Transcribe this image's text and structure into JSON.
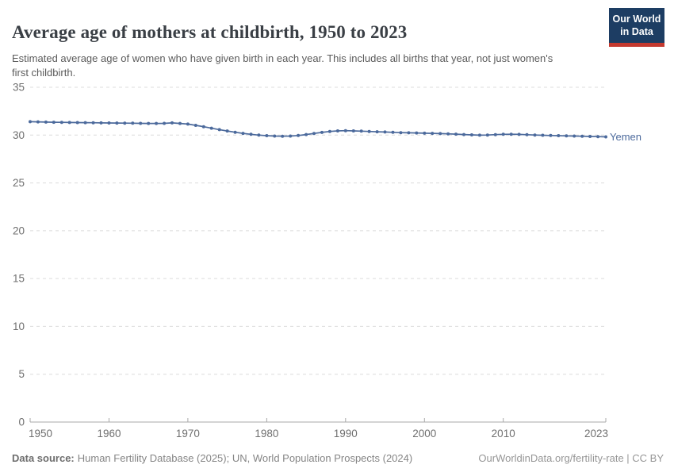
{
  "header": {
    "title": "Average age of mothers at childbirth, 1950 to 2023",
    "subtitle": "Estimated average age of women who have given birth in each year. This includes all births that year, not just women's first childbirth."
  },
  "logo": {
    "text_line1": "Our World",
    "text_line2": "in Data",
    "background_color": "#1d3d63",
    "accent_color": "#c4392f",
    "text_color": "#ffffff"
  },
  "colors": {
    "axis": "#a8a8a8",
    "gridline": "#dcdcdc",
    "tick_label": "#6f6f6f",
    "series_blue": "#4C6A9C"
  },
  "chart_data": {
    "type": "line",
    "title": "Average age of mothers at childbirth, 1950 to 2023",
    "xlabel": "",
    "ylabel": "",
    "xlim": [
      1950,
      2023
    ],
    "ylim": [
      0,
      35
    ],
    "x_ticks": [
      1950,
      1960,
      1970,
      1980,
      1990,
      2000,
      2010,
      2023
    ],
    "y_ticks": [
      0,
      5,
      10,
      15,
      20,
      25,
      30,
      35
    ],
    "grid": "horizontal-dashed",
    "legend_position": "line-end-label",
    "series": [
      {
        "name": "Yemen",
        "color": "#4C6A9C",
        "years": [
          1950,
          1951,
          1952,
          1953,
          1954,
          1955,
          1956,
          1957,
          1958,
          1959,
          1960,
          1961,
          1962,
          1963,
          1964,
          1965,
          1966,
          1967,
          1968,
          1969,
          1970,
          1971,
          1972,
          1973,
          1974,
          1975,
          1976,
          1977,
          1978,
          1979,
          1980,
          1981,
          1982,
          1983,
          1984,
          1985,
          1986,
          1987,
          1988,
          1989,
          1990,
          1991,
          1992,
          1993,
          1994,
          1995,
          1996,
          1997,
          1998,
          1999,
          2000,
          2001,
          2002,
          2003,
          2004,
          2005,
          2006,
          2007,
          2008,
          2009,
          2010,
          2011,
          2012,
          2013,
          2014,
          2015,
          2016,
          2017,
          2018,
          2019,
          2020,
          2021,
          2022,
          2023
        ],
        "values": [
          31.4,
          31.38,
          31.36,
          31.34,
          31.33,
          31.32,
          31.31,
          31.3,
          31.29,
          31.28,
          31.27,
          31.26,
          31.25,
          31.24,
          31.23,
          31.22,
          31.22,
          31.23,
          31.28,
          31.22,
          31.15,
          31.02,
          30.88,
          30.72,
          30.57,
          30.43,
          30.3,
          30.18,
          30.08,
          30.0,
          29.94,
          29.9,
          29.88,
          29.9,
          29.96,
          30.06,
          30.17,
          30.28,
          30.38,
          30.44,
          30.46,
          30.44,
          30.41,
          30.38,
          30.35,
          30.32,
          30.29,
          30.26,
          30.24,
          30.22,
          30.2,
          30.18,
          30.16,
          30.13,
          30.1,
          30.06,
          30.02,
          29.99,
          30.01,
          30.05,
          30.08,
          30.09,
          30.07,
          30.04,
          30.01,
          29.98,
          29.96,
          29.94,
          29.92,
          29.9,
          29.88,
          29.86,
          29.84,
          29.82
        ]
      }
    ]
  },
  "footer": {
    "source_label": "Data source:",
    "source_text": "Human Fertility Database (2025); UN, World Population Prospects (2024)",
    "link_text": "OurWorldinData.org/fertility-rate | CC BY"
  }
}
